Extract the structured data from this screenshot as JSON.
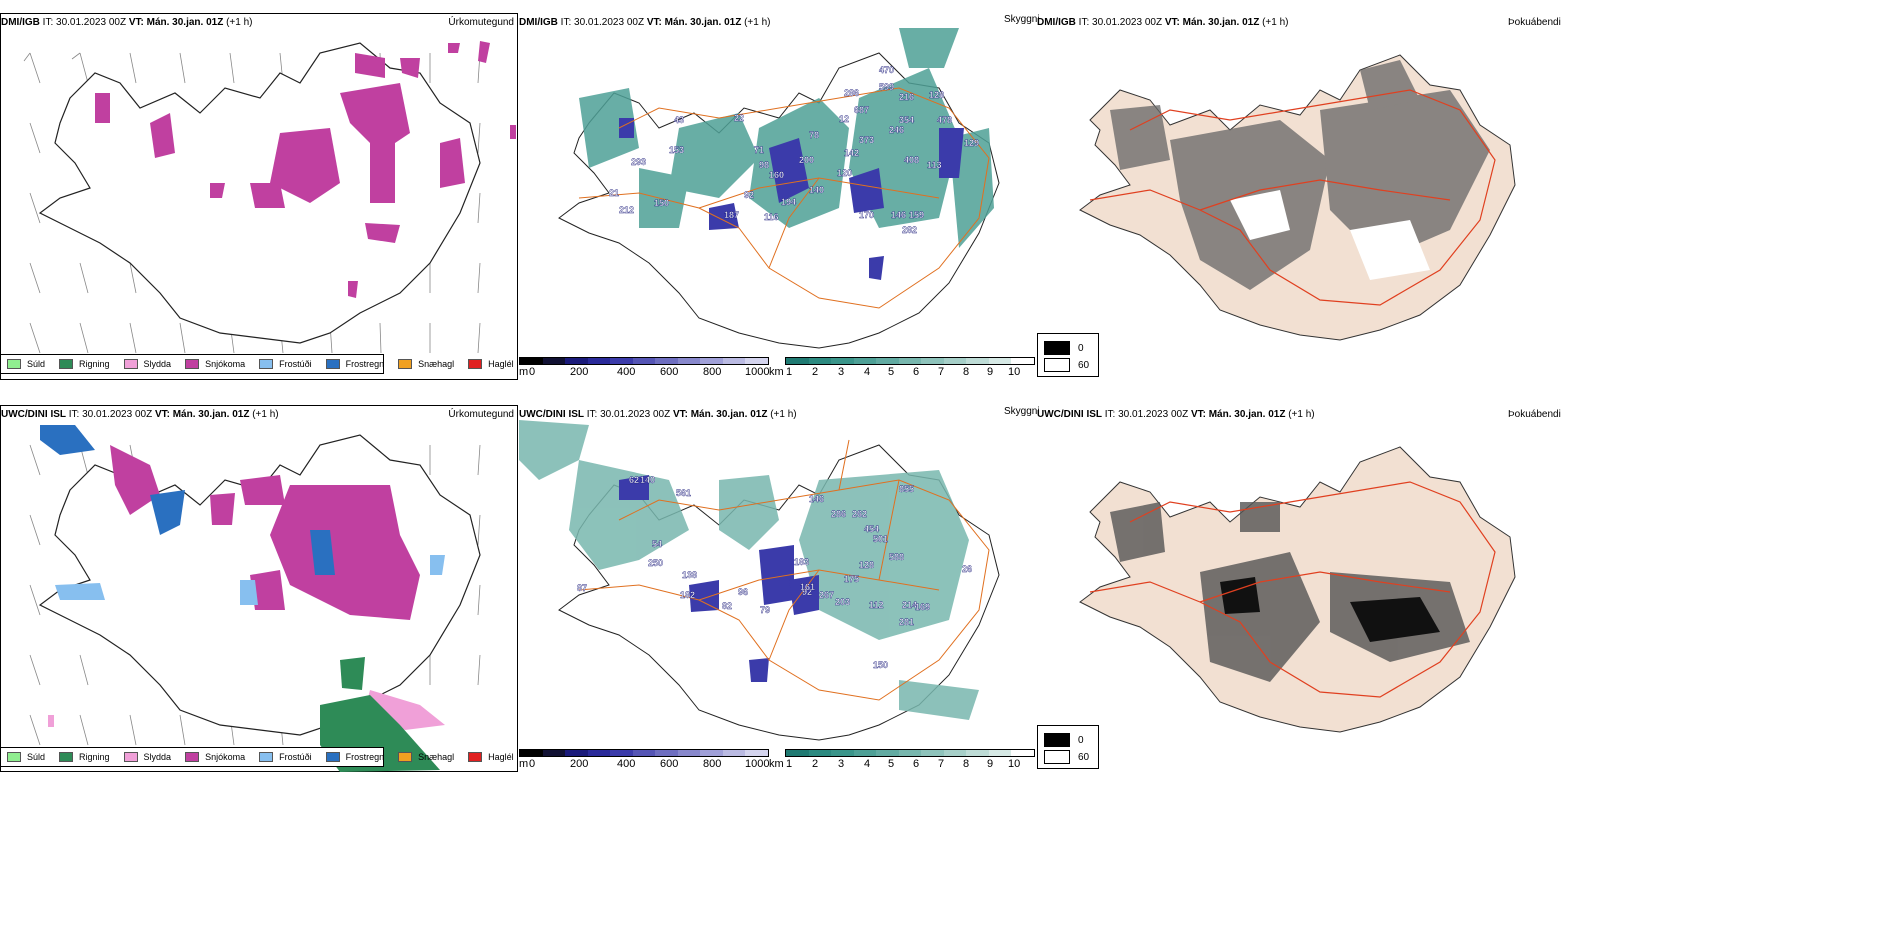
{
  "rows": [
    {
      "id": "dmi",
      "model": "DMI/IGB",
      "it": " IT: 30.01.2023 00Z ",
      "vt_label": "VT: Mán. 30.jan. 01Z",
      "lead": " (+1 h)"
    },
    {
      "id": "uwc",
      "model": "UWC/DINI ISL",
      "it": " IT: 30.01.2023 00Z ",
      "vt_label": "VT: Mán. 30.jan. 01Z",
      "lead": " (+1 h)"
    }
  ],
  "panel_titles": {
    "precip_type": "Úrkomutegund",
    "visibility": "Skyggni",
    "fog": "Þokuábendi"
  },
  "precip_legend": [
    {
      "label": "Súld",
      "color": "#90ee90"
    },
    {
      "label": "Rigning",
      "color": "#2e8b57"
    },
    {
      "label": "Slydda",
      "color": "#f0a0d8"
    },
    {
      "label": "Snjókoma",
      "color": "#c040a0"
    },
    {
      "label": "Frostúði",
      "color": "#87bfef"
    },
    {
      "label": "Frostregn",
      "color": "#2a70c0"
    },
    {
      "label": "Snæhagl",
      "color": "#f0a020"
    },
    {
      "label": "Haglél",
      "color": "#e02020"
    }
  ],
  "visibility_legend": {
    "m_unit": "m",
    "m_ticks": [
      "0",
      "200",
      "400",
      "600",
      "800",
      "1000"
    ],
    "m_colors": [
      "#000000",
      "#111133",
      "#1a1a7a",
      "#2a2a9a",
      "#3b3baa",
      "#5555b5",
      "#6e6ec0",
      "#8888cc",
      "#a0a0d8",
      "#babae2",
      "#d4d4ee"
    ],
    "km_unit": "km",
    "km_ticks": [
      "1",
      "2",
      "3",
      "4",
      "5",
      "6",
      "7",
      "8",
      "9",
      "10"
    ],
    "km_colors": [
      "#1f7a72",
      "#2c8a80",
      "#3a958a",
      "#4ea096",
      "#62aba2",
      "#78b7ae",
      "#8ec3bb",
      "#a6cfc8",
      "#bedcd6",
      "#d6e9e5",
      "#ffffff"
    ]
  },
  "fog_legend": [
    {
      "label": "0",
      "color": "#000000"
    },
    {
      "label": "60",
      "color": "#ffffff"
    }
  ],
  "visibility_labels_top": [
    "470",
    "286",
    "599",
    "216",
    "128",
    "687",
    "373",
    "354",
    "478",
    "246",
    "129",
    "160",
    "120",
    "408",
    "113",
    "92",
    "98",
    "71",
    "200",
    "187",
    "116",
    "194",
    "170",
    "146",
    "282",
    "159",
    "43",
    "293",
    "22",
    "21",
    "212",
    "12",
    "78",
    "142",
    "140",
    "150",
    "153"
  ],
  "visibility_labels_bottom": [
    "855",
    "146",
    "454",
    "501",
    "588",
    "128",
    "175",
    "92",
    "161",
    "267",
    "203",
    "112",
    "214",
    "169",
    "281",
    "150",
    "82",
    "96",
    "79",
    "182",
    "138",
    "54",
    "250",
    "561",
    "87",
    "62",
    "140",
    "286",
    "262",
    "183",
    "26"
  ]
}
